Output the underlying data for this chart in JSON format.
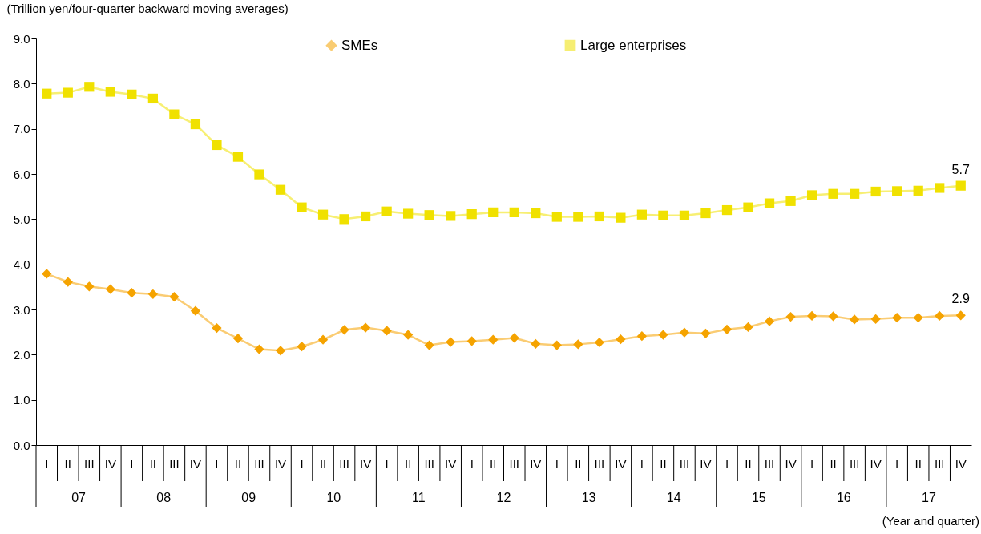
{
  "chart_data": {
    "type": "line",
    "ylabel": "(Trillion yen/four-quarter backward moving averages)",
    "xlabel": "(Year and quarter)",
    "categories": [
      "I",
      "II",
      "III",
      "IV",
      "I",
      "II",
      "III",
      "IV",
      "I",
      "II",
      "III",
      "IV",
      "I",
      "II",
      "III",
      "IV",
      "I",
      "II",
      "III",
      "IV",
      "I",
      "II",
      "III",
      "IV",
      "I",
      "II",
      "III",
      "IV",
      "I",
      "II",
      "III",
      "IV",
      "I",
      "II",
      "III",
      "IV",
      "I",
      "II",
      "III",
      "IV",
      "I",
      "II",
      "III",
      "IV"
    ],
    "annotations": [
      "07",
      "08",
      "09",
      "10",
      "11",
      "12",
      "13",
      "14",
      "15",
      "16",
      "17"
    ],
    "ylim": [
      0,
      9
    ],
    "yticks": [
      {
        "value": 0,
        "label": "0.0"
      },
      {
        "value": 1,
        "label": "1.0"
      },
      {
        "value": 2,
        "label": "2.0"
      },
      {
        "value": 3,
        "label": "3.0"
      },
      {
        "value": 4,
        "label": "4.0"
      },
      {
        "value": 5,
        "label": "5.0"
      },
      {
        "value": 6,
        "label": "6.0"
      },
      {
        "value": 7,
        "label": "7.0"
      },
      {
        "value": 8,
        "label": "8.0"
      },
      {
        "value": 9,
        "label": "9.0"
      }
    ],
    "grid": false,
    "legend": "top",
    "line_style": "solid",
    "series": [
      {
        "name": "SMEs",
        "color": "#f5a300",
        "marker": "diamond",
        "values": [
          3.79,
          3.61,
          3.51,
          3.45,
          3.37,
          3.34,
          3.28,
          2.97,
          2.59,
          2.36,
          2.12,
          2.09,
          2.18,
          2.33,
          2.55,
          2.6,
          2.53,
          2.44,
          2.21,
          2.28,
          2.3,
          2.33,
          2.37,
          2.24,
          2.21,
          2.23,
          2.27,
          2.34,
          2.41,
          2.44,
          2.49,
          2.47,
          2.56,
          2.61,
          2.74,
          2.84,
          2.86,
          2.85,
          2.78,
          2.79,
          2.82,
          2.82,
          2.86,
          2.87
        ],
        "value_labels": [
          null,
          null,
          null,
          null,
          null,
          null,
          null,
          null,
          null,
          null,
          null,
          null,
          null,
          null,
          null,
          null,
          null,
          null,
          null,
          null,
          null,
          null,
          null,
          null,
          null,
          null,
          null,
          null,
          null,
          null,
          null,
          null,
          null,
          null,
          null,
          null,
          null,
          null,
          null,
          null,
          null,
          null,
          null,
          "2.9"
        ]
      },
      {
        "name": "Large enterprises",
        "color": "#f0e100",
        "marker": "square",
        "values": [
          7.78,
          7.8,
          7.93,
          7.82,
          7.76,
          7.67,
          7.32,
          7.1,
          6.64,
          6.38,
          5.99,
          5.65,
          5.26,
          5.1,
          5.0,
          5.06,
          5.17,
          5.12,
          5.09,
          5.07,
          5.11,
          5.15,
          5.15,
          5.13,
          5.05,
          5.05,
          5.06,
          5.03,
          5.1,
          5.08,
          5.08,
          5.13,
          5.2,
          5.26,
          5.35,
          5.4,
          5.53,
          5.56,
          5.56,
          5.61,
          5.62,
          5.63,
          5.69,
          5.74
        ],
        "value_labels": [
          null,
          null,
          null,
          null,
          null,
          null,
          null,
          null,
          null,
          null,
          null,
          null,
          null,
          null,
          null,
          null,
          null,
          null,
          null,
          null,
          null,
          null,
          null,
          null,
          null,
          null,
          null,
          null,
          null,
          null,
          null,
          null,
          null,
          null,
          null,
          null,
          null,
          null,
          null,
          null,
          null,
          null,
          null,
          "5.7"
        ]
      }
    ]
  }
}
